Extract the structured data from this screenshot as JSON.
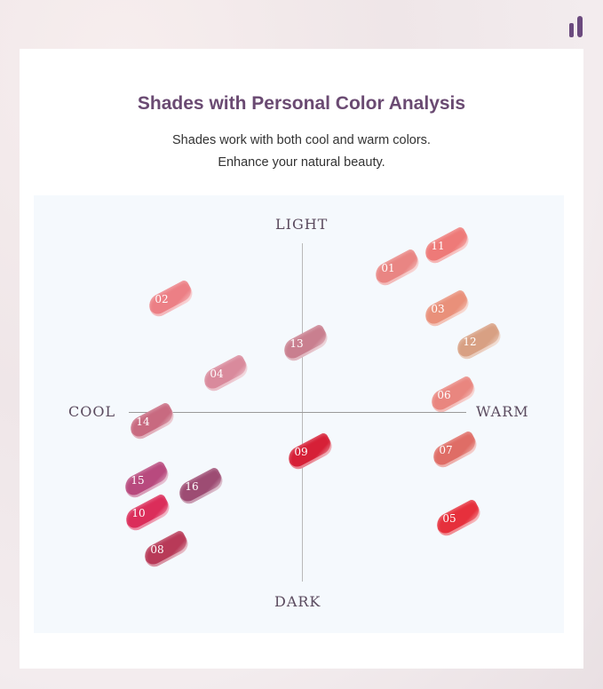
{
  "brand": {
    "logo_icon": "brand-logo-icon",
    "color": "#6b4a7e"
  },
  "header": {
    "title": "Shades with Personal Color Analysis",
    "subtitle_line1": "Shades work with both cool and warm colors.",
    "subtitle_line2": "Enhance your natural beauty."
  },
  "chart": {
    "axes": {
      "top": "LIGHT",
      "bottom": "DARK",
      "left": "COOL",
      "right": "WARM"
    },
    "shades": [
      {
        "label": "01",
        "color": "#e98583"
      },
      {
        "label": "02",
        "color": "#ec7f85"
      },
      {
        "label": "03",
        "color": "#e9907a"
      },
      {
        "label": "04",
        "color": "#d98a9c"
      },
      {
        "label": "05",
        "color": "#e6303c"
      },
      {
        "label": "06",
        "color": "#e9867f"
      },
      {
        "label": "07",
        "color": "#df6d66"
      },
      {
        "label": "08",
        "color": "#b83a58"
      },
      {
        "label": "09",
        "color": "#d62037"
      },
      {
        "label": "10",
        "color": "#db2d5a"
      },
      {
        "label": "11",
        "color": "#ee7a78"
      },
      {
        "label": "12",
        "color": "#d8a083"
      },
      {
        "label": "13",
        "color": "#c97f8f"
      },
      {
        "label": "14",
        "color": "#c86a80"
      },
      {
        "label": "15",
        "color": "#b84a7e"
      },
      {
        "label": "16",
        "color": "#9d4c73"
      }
    ]
  }
}
